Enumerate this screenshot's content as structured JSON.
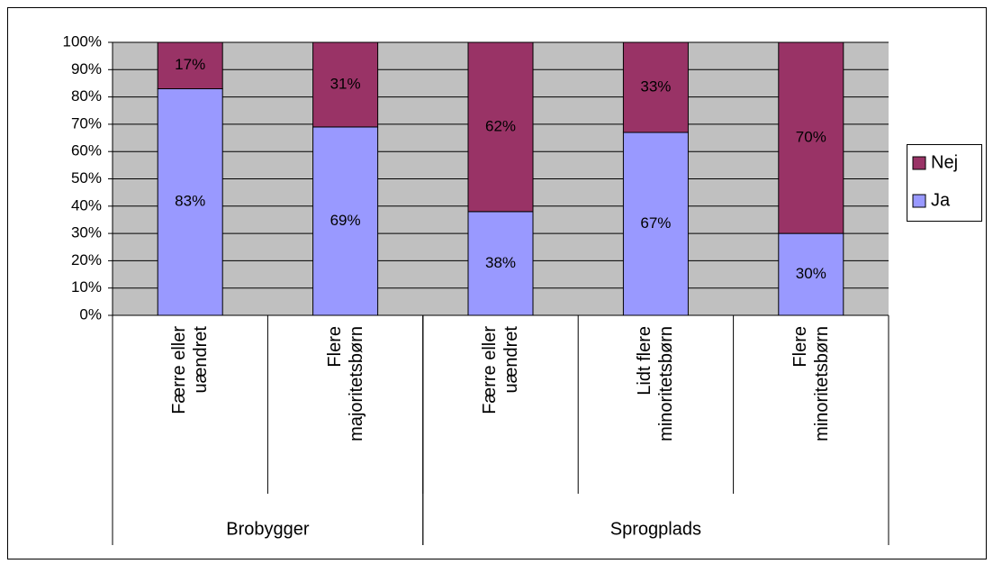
{
  "chart_data": {
    "type": "stacked_bar_100",
    "categories": [
      "Færre eller uændret",
      "Flere majoritetsbørn",
      "Færre eller uændret",
      "Lidt flere minoritetsbørn",
      "Flere minoritetsbørn"
    ],
    "groups": [
      {
        "label": "Brobygger",
        "count": 2
      },
      {
        "label": "Sprogplads",
        "count": 3
      }
    ],
    "series": [
      {
        "name": "Ja",
        "color": "#9999ff",
        "values": [
          83,
          69,
          38,
          67,
          30
        ],
        "value_labels": [
          "83%",
          "69%",
          "38%",
          "67%",
          "30%"
        ]
      },
      {
        "name": "Nej",
        "color": "#993366",
        "values": [
          17,
          31,
          62,
          33,
          70
        ],
        "value_labels": [
          "17%",
          "31%",
          "62%",
          "33%",
          "70%"
        ]
      }
    ],
    "ylim": [
      0,
      100
    ],
    "yticks": [
      {
        "value": 0,
        "label": "0%"
      },
      {
        "value": 10,
        "label": "10%"
      },
      {
        "value": 20,
        "label": "20%"
      },
      {
        "value": 30,
        "label": "30%"
      },
      {
        "value": 40,
        "label": "40%"
      },
      {
        "value": 50,
        "label": "50%"
      },
      {
        "value": 60,
        "label": "60%"
      },
      {
        "value": 70,
        "label": "70%"
      },
      {
        "value": 80,
        "label": "80%"
      },
      {
        "value": 90,
        "label": "90%"
      },
      {
        "value": 100,
        "label": "100%"
      }
    ],
    "grid": true,
    "legend": "right",
    "background": "#c0c0c0"
  }
}
